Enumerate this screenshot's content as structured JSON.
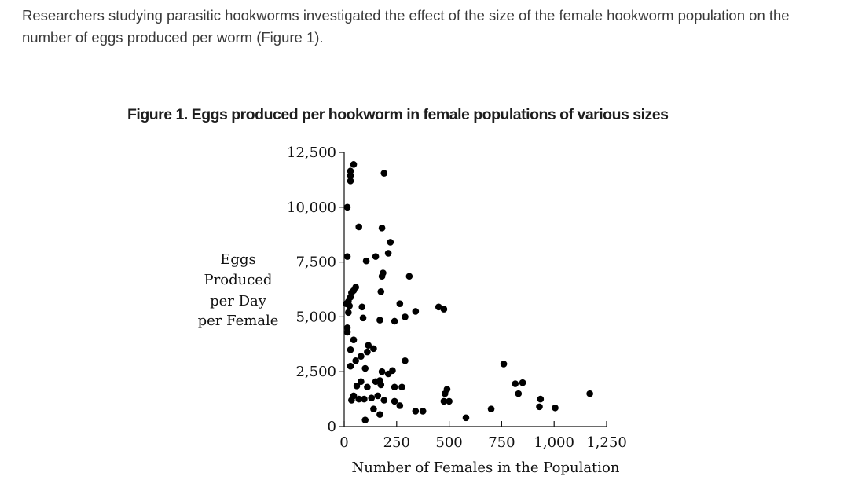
{
  "intro_text": "Researchers studying parasitic hookworms investigated the effect of the size of the female hookworm population on the number of eggs produced per worm (Figure 1).",
  "chart_data": {
    "type": "scatter",
    "title": "Figure 1. Eggs produced per hookworm in female populations of various sizes",
    "xlabel": "Number of Females in the Population",
    "ylabel_lines": [
      "Eggs",
      "Produced",
      "per Day",
      "per Female"
    ],
    "xlim": [
      0,
      1250
    ],
    "ylim": [
      0,
      12500
    ],
    "x_ticks": [
      {
        "value": 0,
        "label": "0"
      },
      {
        "value": 250,
        "label": "250"
      },
      {
        "value": 500,
        "label": "500"
      },
      {
        "value": 750,
        "label": "750"
      },
      {
        "value": 1000,
        "label": "1,000"
      },
      {
        "value": 1250,
        "label": "1,250"
      }
    ],
    "y_ticks": [
      {
        "value": 0,
        "label": "0"
      },
      {
        "value": 2500,
        "label": "2,500"
      },
      {
        "value": 5000,
        "label": "5,000"
      },
      {
        "value": 7500,
        "label": "7,500"
      },
      {
        "value": 10000,
        "label": "10,000"
      },
      {
        "value": 12500,
        "label": "12,500"
      }
    ],
    "grid": false,
    "marker_color": "#000000",
    "points": [
      {
        "x": 45,
        "y": 11950
      },
      {
        "x": 30,
        "y": 11650
      },
      {
        "x": 30,
        "y": 11450
      },
      {
        "x": 30,
        "y": 11200
      },
      {
        "x": 190,
        "y": 11550
      },
      {
        "x": 15,
        "y": 10000
      },
      {
        "x": 70,
        "y": 9100
      },
      {
        "x": 180,
        "y": 9050
      },
      {
        "x": 220,
        "y": 8400
      },
      {
        "x": 210,
        "y": 7900
      },
      {
        "x": 15,
        "y": 7750
      },
      {
        "x": 150,
        "y": 7750
      },
      {
        "x": 105,
        "y": 7550
      },
      {
        "x": 185,
        "y": 7000
      },
      {
        "x": 180,
        "y": 6850
      },
      {
        "x": 310,
        "y": 6850
      },
      {
        "x": 55,
        "y": 6350
      },
      {
        "x": 45,
        "y": 6200
      },
      {
        "x": 35,
        "y": 6100
      },
      {
        "x": 30,
        "y": 5900
      },
      {
        "x": 20,
        "y": 5700
      },
      {
        "x": 10,
        "y": 5600
      },
      {
        "x": 25,
        "y": 5500
      },
      {
        "x": 175,
        "y": 6150
      },
      {
        "x": 265,
        "y": 5600
      },
      {
        "x": 85,
        "y": 5450
      },
      {
        "x": 20,
        "y": 5200
      },
      {
        "x": 90,
        "y": 4950
      },
      {
        "x": 170,
        "y": 4850
      },
      {
        "x": 240,
        "y": 4800
      },
      {
        "x": 290,
        "y": 5000
      },
      {
        "x": 340,
        "y": 5250
      },
      {
        "x": 450,
        "y": 5450
      },
      {
        "x": 475,
        "y": 5350
      },
      {
        "x": 15,
        "y": 4500
      },
      {
        "x": 15,
        "y": 4300
      },
      {
        "x": 45,
        "y": 3950
      },
      {
        "x": 30,
        "y": 3500
      },
      {
        "x": 115,
        "y": 3700
      },
      {
        "x": 140,
        "y": 3550
      },
      {
        "x": 110,
        "y": 3400
      },
      {
        "x": 80,
        "y": 3200
      },
      {
        "x": 55,
        "y": 3000
      },
      {
        "x": 30,
        "y": 2750
      },
      {
        "x": 100,
        "y": 2650
      },
      {
        "x": 290,
        "y": 3000
      },
      {
        "x": 180,
        "y": 2500
      },
      {
        "x": 230,
        "y": 2550
      },
      {
        "x": 210,
        "y": 2400
      },
      {
        "x": 80,
        "y": 2050
      },
      {
        "x": 150,
        "y": 2050
      },
      {
        "x": 170,
        "y": 2100
      },
      {
        "x": 60,
        "y": 1850
      },
      {
        "x": 110,
        "y": 1800
      },
      {
        "x": 175,
        "y": 1900
      },
      {
        "x": 240,
        "y": 1800
      },
      {
        "x": 275,
        "y": 1800
      },
      {
        "x": 490,
        "y": 1700
      },
      {
        "x": 480,
        "y": 1500
      },
      {
        "x": 45,
        "y": 1400
      },
      {
        "x": 35,
        "y": 1200
      },
      {
        "x": 70,
        "y": 1250
      },
      {
        "x": 95,
        "y": 1250
      },
      {
        "x": 130,
        "y": 1300
      },
      {
        "x": 160,
        "y": 1400
      },
      {
        "x": 190,
        "y": 1200
      },
      {
        "x": 240,
        "y": 1150
      },
      {
        "x": 265,
        "y": 950
      },
      {
        "x": 140,
        "y": 800
      },
      {
        "x": 170,
        "y": 550
      },
      {
        "x": 100,
        "y": 300
      },
      {
        "x": 340,
        "y": 700
      },
      {
        "x": 375,
        "y": 700
      },
      {
        "x": 475,
        "y": 1150
      },
      {
        "x": 500,
        "y": 1150
      },
      {
        "x": 580,
        "y": 400
      },
      {
        "x": 700,
        "y": 800
      },
      {
        "x": 760,
        "y": 2850
      },
      {
        "x": 815,
        "y": 1950
      },
      {
        "x": 850,
        "y": 2000
      },
      {
        "x": 830,
        "y": 1500
      },
      {
        "x": 935,
        "y": 1250
      },
      {
        "x": 930,
        "y": 900
      },
      {
        "x": 1005,
        "y": 850
      },
      {
        "x": 1170,
        "y": 1500
      }
    ]
  }
}
